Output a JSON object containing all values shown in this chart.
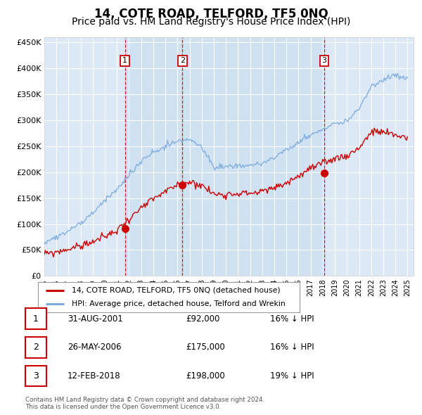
{
  "title": "14, COTE ROAD, TELFORD, TF5 0NQ",
  "subtitle": "Price paid vs. HM Land Registry's House Price Index (HPI)",
  "title_fontsize": 12,
  "subtitle_fontsize": 10,
  "background_color": "#ffffff",
  "plot_bg_color": "#dce8f5",
  "grid_color": "#ffffff",
  "ylim": [
    0,
    460000
  ],
  "yticks": [
    0,
    50000,
    100000,
    150000,
    200000,
    250000,
    300000,
    350000,
    400000,
    450000
  ],
  "ytick_labels": [
    "£0",
    "£50K",
    "£100K",
    "£150K",
    "£200K",
    "£250K",
    "£300K",
    "£350K",
    "£400K",
    "£450K"
  ],
  "xlim_start": 1995.0,
  "xlim_end": 2025.5,
  "xtick_years": [
    1995,
    1996,
    1997,
    1998,
    1999,
    2000,
    2001,
    2002,
    2003,
    2004,
    2005,
    2006,
    2007,
    2008,
    2009,
    2010,
    2011,
    2012,
    2013,
    2014,
    2015,
    2016,
    2017,
    2018,
    2019,
    2020,
    2021,
    2022,
    2023,
    2024,
    2025
  ],
  "sale_dates": [
    2001.66,
    2006.4,
    2018.12
  ],
  "sale_prices": [
    92000,
    175000,
    198000
  ],
  "sale_labels": [
    "1",
    "2",
    "3"
  ],
  "sale_color": "#cc0000",
  "hpi_color": "#7aaadd",
  "shade_color": "#c8ddf0",
  "legend_label_red": "14, COTE ROAD, TELFORD, TF5 0NQ (detached house)",
  "legend_label_blue": "HPI: Average price, detached house, Telford and Wrekin",
  "table_rows": [
    [
      "1",
      "31-AUG-2001",
      "£92,000",
      "16% ↓ HPI"
    ],
    [
      "2",
      "26-MAY-2006",
      "£175,000",
      "16% ↓ HPI"
    ],
    [
      "3",
      "12-FEB-2018",
      "£198,000",
      "19% ↓ HPI"
    ]
  ],
  "footer_text": "Contains HM Land Registry data © Crown copyright and database right 2024.\nThis data is licensed under the Open Government Licence v3.0."
}
